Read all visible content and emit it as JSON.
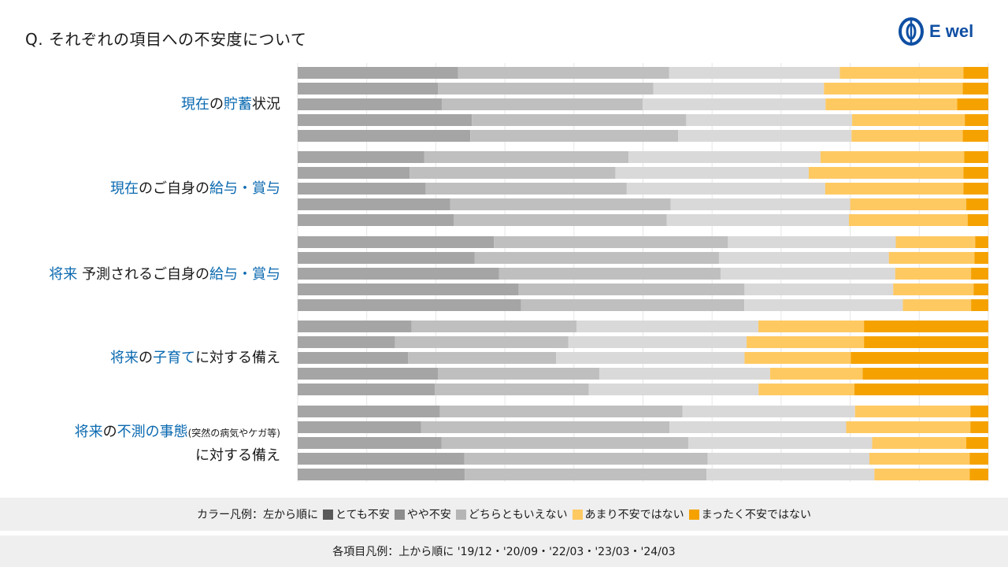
{
  "title": "Q. それぞれの項目への不安度について",
  "logo": {
    "text": "E wel"
  },
  "legend": {
    "prefix": "カラー凡例：左から順に",
    "items": [
      "とても不安",
      "やや不安",
      "どちらともいえない",
      "あまり不安ではない",
      "まったく不安ではない"
    ]
  },
  "note": "各項目凡例：上から順に '19/12・'20/09・'22/03・'23/03・'24/03",
  "colors": [
    "#a5a5a5",
    "#bfbfbf",
    "#d9d9d9",
    "#ffc962",
    "#f5a200"
  ],
  "legend_colors": [
    "#595959",
    "#8c8c8c",
    "#b5b5b5",
    "#ffc962",
    "#f5a200"
  ],
  "groups": [
    {
      "label": [
        {
          "t": "現在",
          "s": "b"
        },
        {
          "t": "の"
        },
        {
          "t": "貯蓄",
          "s": "b"
        },
        {
          "t": "状況"
        }
      ]
    },
    {
      "label": [
        {
          "t": "現在",
          "s": "b"
        },
        {
          "t": "のご自身の"
        },
        {
          "t": "給与・賞与",
          "s": "b"
        }
      ]
    },
    {
      "label": [
        {
          "t": "将来",
          "s": "b"
        },
        {
          "t": " 予測されるご自身の"
        },
        {
          "t": "給与・賞与",
          "s": "b"
        }
      ]
    },
    {
      "label": [
        {
          "t": "将来",
          "s": "b"
        },
        {
          "t": "の"
        },
        {
          "t": "子育て",
          "s": "b"
        },
        {
          "t": "に対する備え"
        }
      ]
    },
    {
      "label": [
        {
          "t": "将来",
          "s": "b"
        },
        {
          "t": "の"
        },
        {
          "t": "不測の事態",
          "s": "b"
        },
        {
          "t": "(突然の病気やケガ等)",
          "s": "s"
        }
      ],
      "label2": [
        {
          "t": "に対する備え"
        }
      ]
    }
  ],
  "chart_data": {
    "type": "bar",
    "orientation": "horizontal",
    "stacked": "100%",
    "series": [
      {
        "name": "とても不安"
      },
      {
        "name": "やや不安"
      },
      {
        "name": "どちらともいえない"
      },
      {
        "name": "あまり不安ではない"
      },
      {
        "name": "まったく不安ではない"
      }
    ],
    "periods": [
      "'19/12",
      "'20/09",
      "'22/03",
      "'23/03",
      "'24/03"
    ],
    "data": [
      [
        [
          23.2,
          30.6,
          24.7,
          17.9,
          3.6
        ],
        [
          20.3,
          31.2,
          24.7,
          20.1,
          3.7
        ],
        [
          20.8,
          29.0,
          26.4,
          19.0,
          4.5
        ],
        [
          25.2,
          31.0,
          24.0,
          16.3,
          3.4
        ],
        [
          25.0,
          30.1,
          25.1,
          16.1,
          3.7
        ]
      ],
      [
        [
          18.3,
          29.6,
          27.8,
          20.8,
          3.5
        ],
        [
          16.2,
          29.8,
          28.0,
          22.4,
          3.6
        ],
        [
          18.5,
          29.1,
          28.7,
          20.0,
          3.6
        ],
        [
          22.1,
          31.9,
          26.0,
          16.8,
          3.2
        ],
        [
          22.6,
          30.9,
          26.4,
          17.2,
          3.0
        ]
      ],
      [
        [
          28.4,
          33.9,
          24.3,
          11.5,
          1.9
        ],
        [
          25.6,
          35.4,
          24.6,
          12.4,
          2.0
        ],
        [
          29.2,
          32.1,
          25.3,
          11.0,
          2.5
        ],
        [
          33.0,
          33.7,
          22.2,
          12.0,
          2.2
        ],
        [
          32.4,
          32.4,
          23.0,
          9.9,
          2.5
        ]
      ],
      [
        [
          16.5,
          23.9,
          26.3,
          15.3,
          18.0
        ],
        [
          14.1,
          25.1,
          25.8,
          17.0,
          18.0
        ],
        [
          16.0,
          21.4,
          27.3,
          15.4,
          19.9
        ],
        [
          20.3,
          23.4,
          24.7,
          13.4,
          18.2
        ],
        [
          19.9,
          22.3,
          24.6,
          13.9,
          19.4
        ]
      ],
      [
        [
          20.6,
          35.1,
          25.0,
          16.7,
          2.6
        ],
        [
          17.9,
          36.0,
          25.6,
          18.0,
          2.6
        ],
        [
          20.2,
          34.6,
          25.8,
          13.2,
          3.1
        ],
        [
          24.1,
          35.2,
          23.4,
          14.5,
          2.7
        ],
        [
          24.2,
          35.0,
          24.3,
          13.8,
          2.7
        ]
      ]
    ]
  }
}
